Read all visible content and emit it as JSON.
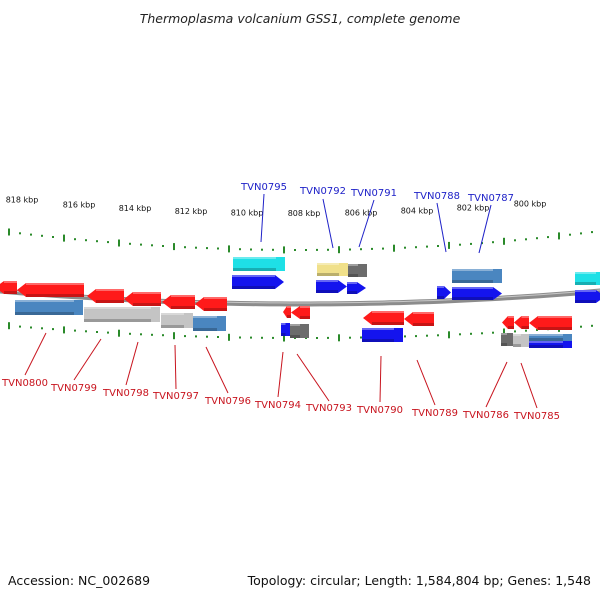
{
  "title": "Thermoplasma volcanium GSS1, complete genome",
  "footer": {
    "accession": "Accession: NC_002689",
    "summary": "Topology: circular; Length: 1,584,804 bp; Genes: 1,548"
  },
  "colors": {
    "red": "#ff1a1a",
    "blue": "#1414ee",
    "cyan": "#1ee0e6",
    "steelblue": "#4a86c0",
    "lightgray": "#c4c4c4",
    "darkgray": "#6c6c6c",
    "khaki": "#f0e08a",
    "ruler": "#2a8a2a",
    "backbone": "#8c8c8c",
    "label_fwd": "#1f22c8",
    "label_rev": "#c8141e"
  },
  "scale_labels": [
    "818 kbp",
    "816 kbp",
    "814 kbp",
    "812 kbp",
    "810 kbp",
    "808 kbp",
    "806 kbp",
    "804 kbp",
    "802 kbp",
    "800 kbp"
  ],
  "forward_labels": [
    "TVN0795",
    "TVN0792",
    "TVN0791",
    "TVN0788",
    "TVN0787"
  ],
  "reverse_labels": [
    "TVN0800",
    "TVN0799",
    "TVN0798",
    "TVN0797",
    "TVN0796",
    "TVN0794",
    "TVN0793",
    "TVN0790",
    "TVN0789",
    "TVN0786",
    "TVN0785"
  ]
}
